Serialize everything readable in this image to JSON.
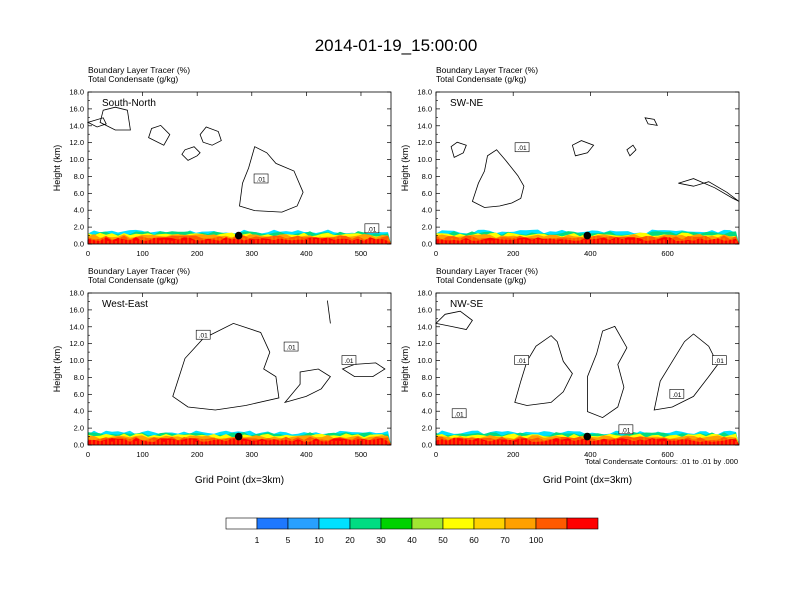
{
  "figure": {
    "title": "2014-01-19_15:00:00",
    "footnote": "Total Condensate Contours: .01 to .01 by .000"
  },
  "colorbar": {
    "colors": [
      "#ffffff",
      "#1e78ff",
      "#28a0ff",
      "#00e1ff",
      "#00dc82",
      "#00d200",
      "#a0e632",
      "#ffff00",
      "#ffd200",
      "#ffa000",
      "#ff5a00",
      "#ff0000"
    ],
    "labels": [
      "1",
      "5",
      "10",
      "20",
      "30",
      "40",
      "50",
      "60",
      "70",
      "100"
    ]
  },
  "chart_data": [
    {
      "type": "contour",
      "panel": "South-North",
      "header_line1": "Boundary Layer Tracer   (%)",
      "header_line2": "Total Condensate   (g/kg)",
      "label": "South-North",
      "xlabel": "",
      "ylabel": "Height (km)",
      "xlim": [
        0,
        555
      ],
      "ylim": [
        0,
        18
      ],
      "xticks": [
        0,
        100,
        200,
        300,
        400,
        500
      ],
      "yticks": [
        "0.0",
        "2.0",
        "4.0",
        "6.0",
        "8.0",
        "10.0",
        "12.0",
        "14.0",
        "16.0",
        "18.0"
      ],
      "marker": {
        "x": 276,
        "y": 1.0
      },
      "contour_labels": [
        {
          "text": ".01",
          "x": 317,
          "y": 7.7
        },
        {
          "text": ".01",
          "x": 520,
          "y": 1.8
        }
      ]
    },
    {
      "type": "contour",
      "panel": "SW-NE",
      "header_line1": "Boundary Layer Tracer   (%)",
      "header_line2": "Total Condensate   (g/kg)",
      "label": "SW-NE",
      "xlabel": "",
      "ylabel": "Height (km)",
      "xlim": [
        0,
        785
      ],
      "ylim": [
        0,
        18
      ],
      "xticks": [
        0,
        200,
        400,
        600
      ],
      "yticks": [
        "0.0",
        "2.0",
        "4.0",
        "6.0",
        "8.0",
        "10.0",
        "12.0",
        "14.0",
        "16.0",
        "18.0"
      ],
      "marker": {
        "x": 392,
        "y": 1.0
      },
      "contour_labels": [
        {
          "text": ".01",
          "x": 223,
          "y": 11.4
        }
      ]
    },
    {
      "type": "contour",
      "panel": "West-East",
      "header_line1": "Boundary Layer Tracer   (%)",
      "header_line2": "Total Condensate   (g/kg)",
      "label": "West-East",
      "xlabel": "Grid Point (dx=3km)",
      "ylabel": "Height (km)",
      "xlim": [
        0,
        555
      ],
      "ylim": [
        0,
        18
      ],
      "xticks": [
        0,
        100,
        200,
        300,
        400,
        500
      ],
      "yticks": [
        "0.0",
        "2.0",
        "4.0",
        "6.0",
        "8.0",
        "10.0",
        "12.0",
        "14.0",
        "16.0",
        "18.0"
      ],
      "marker": {
        "x": 276,
        "y": 1.0
      },
      "contour_labels": [
        {
          "text": ".01",
          "x": 211,
          "y": 13.0
        },
        {
          "text": ".01",
          "x": 372,
          "y": 11.6
        },
        {
          "text": ".01",
          "x": 478,
          "y": 10.0
        }
      ]
    },
    {
      "type": "contour",
      "panel": "NW-SE",
      "header_line1": "Boundary Layer Tracer   (%)",
      "header_line2": "Total Condensate   (g/kg)",
      "label": "NW-SE",
      "xlabel": "Grid Point (dx=3km)",
      "ylabel": "Height (km)",
      "xlim": [
        0,
        785
      ],
      "ylim": [
        0,
        18
      ],
      "xticks": [
        0,
        200,
        400,
        600
      ],
      "yticks": [
        "0.0",
        "2.0",
        "4.0",
        "6.0",
        "8.0",
        "10.0",
        "12.0",
        "14.0",
        "16.0",
        "18.0"
      ],
      "marker": {
        "x": 392,
        "y": 1.0
      },
      "contour_labels": [
        {
          "text": ".01",
          "x": 60,
          "y": 3.7
        },
        {
          "text": ".01",
          "x": 222,
          "y": 10.0
        },
        {
          "text": ".01",
          "x": 492,
          "y": 1.8
        },
        {
          "text": ".01",
          "x": 624,
          "y": 6.0
        },
        {
          "text": ".01",
          "x": 734,
          "y": 10.0
        }
      ]
    }
  ]
}
